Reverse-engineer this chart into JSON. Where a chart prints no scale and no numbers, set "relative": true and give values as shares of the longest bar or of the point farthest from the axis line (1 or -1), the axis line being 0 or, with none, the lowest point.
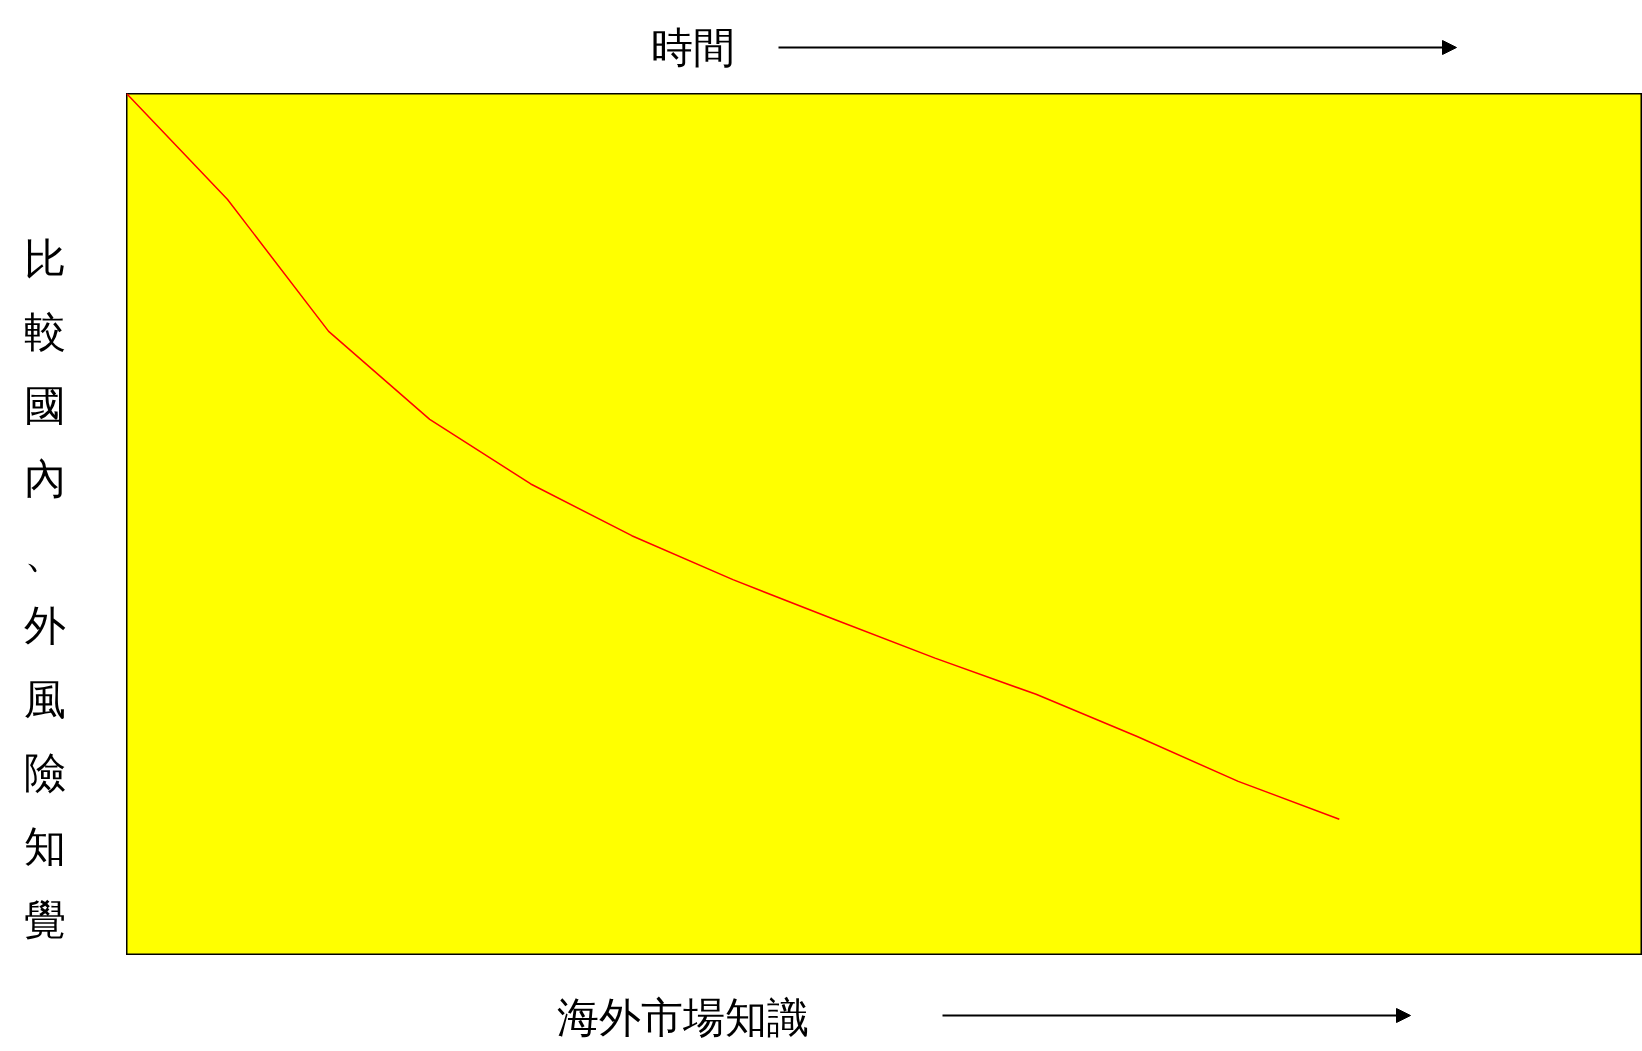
{
  "chart_data": {
    "type": "line",
    "title": "時間",
    "xlabel": "海外市場知識",
    "ylabel": "比較國內、外風險知覺",
    "relative": true,
    "marker": "none",
    "line_style": "solid",
    "categories": [
      null,
      null,
      null,
      null,
      null,
      null,
      null,
      null,
      null,
      null,
      null,
      null,
      null,
      null,
      null,
      null
    ],
    "series": [
      {
        "color": "#ff0000",
        "values": [
          1.0,
          0.877,
          0.724,
          0.622,
          0.547,
          0.487,
          0.436,
          0.39,
          0.345,
          0.303,
          0.254,
          0.202,
          0.158,
          null,
          null,
          null
        ]
      }
    ]
  }
}
